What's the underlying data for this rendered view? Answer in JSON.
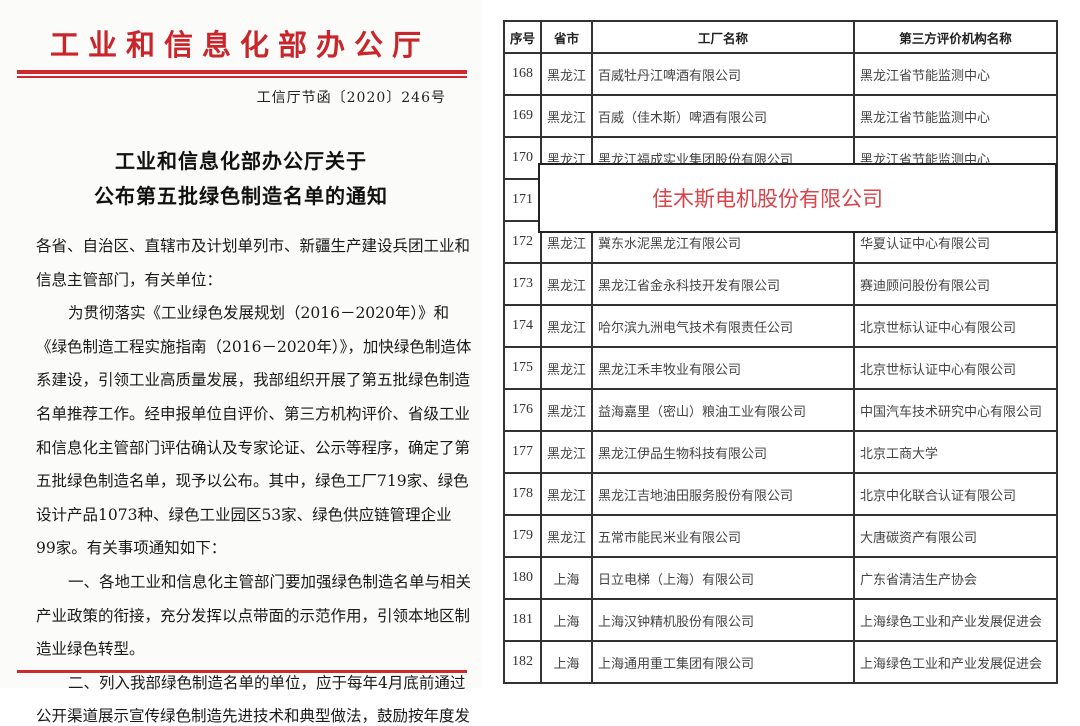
{
  "letter": {
    "header": "工业和信息化部办公厅",
    "doc_number": "工信厅节函〔2020〕246号",
    "title_lines": [
      "工业和信息化部办公厅关于",
      "公布第五批绿色制造名单的通知"
    ],
    "body_lines": [
      "各省、自治区、直辖市及计划单列市、新疆生产建设兵团工业和",
      "信息主管部门，有关单位：",
      "为贯彻落实《工业绿色发展规划（2016－2020年）》和",
      "《绿色制造工程实施指南（2016－2020年）》，加快绿色制造体",
      "系建设，引领工业高质量发展，我部组织开展了第五批绿色制造",
      "名单推荐工作。经申报单位自评价、第三方机构评价、省级工业",
      "和信息化主管部门评估确认及专家论证、公示等程序，确定了第",
      "五批绿色制造名单，现予以公布。其中，绿色工厂719家、绿色",
      "设计产品1073种、绿色工业园区53家、绿色供应链管理企业",
      "99家。有关事项通知如下：",
      "一、各地工业和信息化主管部门要加强绿色制造名单与相关",
      "产业政策的衔接，充分发挥以点带面的示范作用，引领本地区制",
      "造业绿色转型。",
      "二、列入我部绿色制造名单的单位，应于每年4月底前通过",
      "公开渠道展示宣传绿色制造先进技术和典型做法，鼓励按年度发"
    ]
  },
  "table": {
    "headers": [
      "序号",
      "省市",
      "工厂名称",
      "第三方评价机构名称"
    ],
    "rows": [
      [
        "168",
        "黑龙江",
        "百威牡丹江啤酒有限公司",
        "黑龙江省节能监测中心"
      ],
      [
        "169",
        "黑龙江",
        "百威（佳木斯）啤酒有限公司",
        "黑龙江省节能监测中心"
      ],
      [
        "170",
        "黑龙江",
        "黑龙江福成实业集团股份有限公司",
        "黑龙江省节能监测中心"
      ],
      [
        "171",
        "",
        "",
        ""
      ],
      [
        "172",
        "黑龙江",
        "冀东水泥黑龙江有限公司",
        "华夏认证中心有限公司"
      ],
      [
        "173",
        "黑龙江",
        "黑龙江省金永科技开发有限公司",
        "赛迪顾问股份有限公司"
      ],
      [
        "174",
        "黑龙江",
        "哈尔滨九洲电气技术有限责任公司",
        "北京世标认证中心有限公司"
      ],
      [
        "175",
        "黑龙江",
        "黑龙江禾丰牧业有限公司",
        "北京世标认证中心有限公司"
      ],
      [
        "176",
        "黑龙江",
        "益海嘉里（密山）粮油工业有限公司",
        "中国汽车技术研究中心有限公司"
      ],
      [
        "177",
        "黑龙江",
        "黑龙江伊品生物科技有限公司",
        "北京工商大学"
      ],
      [
        "178",
        "黑龙江",
        "黑龙江吉地油田服务股份有限公司",
        "北京中化联合认证有限公司"
      ],
      [
        "179",
        "黑龙江",
        "五常市能民米业有限公司",
        "大唐碳资产有限公司"
      ],
      [
        "180",
        "上海",
        "日立电梯（上海）有限公司",
        "广东省清洁生产协会"
      ],
      [
        "181",
        "上海",
        "上海汉钟精机股份有限公司",
        "上海绿色工业和产业发展促进会"
      ],
      [
        "182",
        "上海",
        "上海通用重工集团有限公司",
        "上海绿色工业和产业发展促进会"
      ]
    ],
    "highlight_overlay": "佳木斯电机股份有限公司"
  },
  "colors": {
    "letterhead_red": "#c9262c",
    "overlay_text": "#d9434a"
  }
}
